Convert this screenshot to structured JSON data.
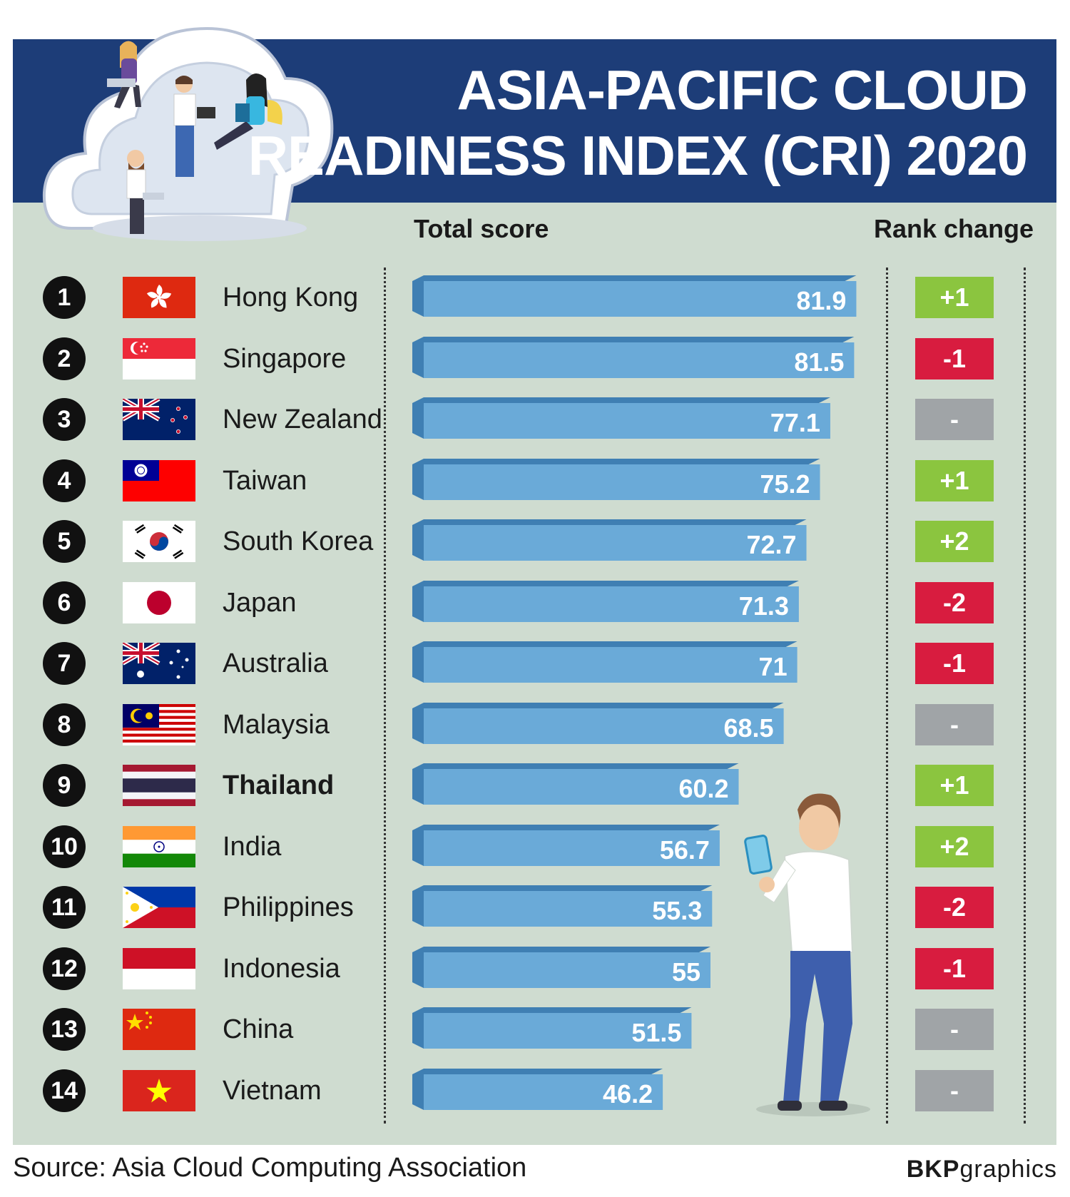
{
  "header": {
    "title_line1": "ASIA-PACIFIC CLOUD",
    "title_line2": "READINESS INDEX (CRI) 2020"
  },
  "columns": {
    "total_score": "Total score",
    "rank_change": "Rank change"
  },
  "footer": {
    "source": "Source: Asia Cloud Computing Association",
    "credit_bold": "BKP",
    "credit_rest": "graphics"
  },
  "colors": {
    "header_bg": "#1d3d78",
    "panel_bg": "#cfdcd0",
    "bar": "#6aaad8",
    "bar_side": "#3f7fb3",
    "up": "#8bc53f",
    "down": "#d81c3f",
    "none": "#a0a4a7"
  },
  "chart_data": {
    "type": "bar",
    "orientation": "horizontal",
    "title": "ASIA-PACIFIC CLOUD READINESS INDEX (CRI) 2020",
    "xlabel": "Total score",
    "categories": [
      "Hong Kong",
      "Singapore",
      "New Zealand",
      "Taiwan",
      "South Korea",
      "Japan",
      "Australia",
      "Malaysia",
      "Thailand",
      "India",
      "Philippines",
      "Indonesia",
      "China",
      "Vietnam"
    ],
    "ranks": [
      "1",
      "2",
      "3",
      "4",
      "5",
      "6",
      "7",
      "8",
      "9",
      "10",
      "11",
      "12",
      "13",
      "14"
    ],
    "values": [
      81.9,
      81.5,
      77.1,
      75.2,
      72.7,
      71.3,
      71,
      68.5,
      60.2,
      56.7,
      55.3,
      55,
      51.5,
      46.2
    ],
    "value_labels": [
      "81.9",
      "81.5",
      "77.1",
      "75.2",
      "72.7",
      "71.3",
      "71",
      "68.5",
      "60.2",
      "56.7",
      "55.3",
      "55",
      "51.5",
      "46.2"
    ],
    "rank_change": [
      "+1",
      "-1",
      "-",
      "+1",
      "+2",
      "-2",
      "-1",
      "-",
      "+1",
      "+2",
      "-2",
      "-1",
      "-",
      "-"
    ],
    "highlight": "Thailand",
    "flags": [
      "hong-kong-flag",
      "singapore-flag",
      "new-zealand-flag",
      "taiwan-flag",
      "south-korea-flag",
      "japan-flag",
      "australia-flag",
      "malaysia-flag",
      "thailand-flag",
      "india-flag",
      "philippines-flag",
      "indonesia-flag",
      "china-flag",
      "vietnam-flag"
    ],
    "legend": "none"
  }
}
